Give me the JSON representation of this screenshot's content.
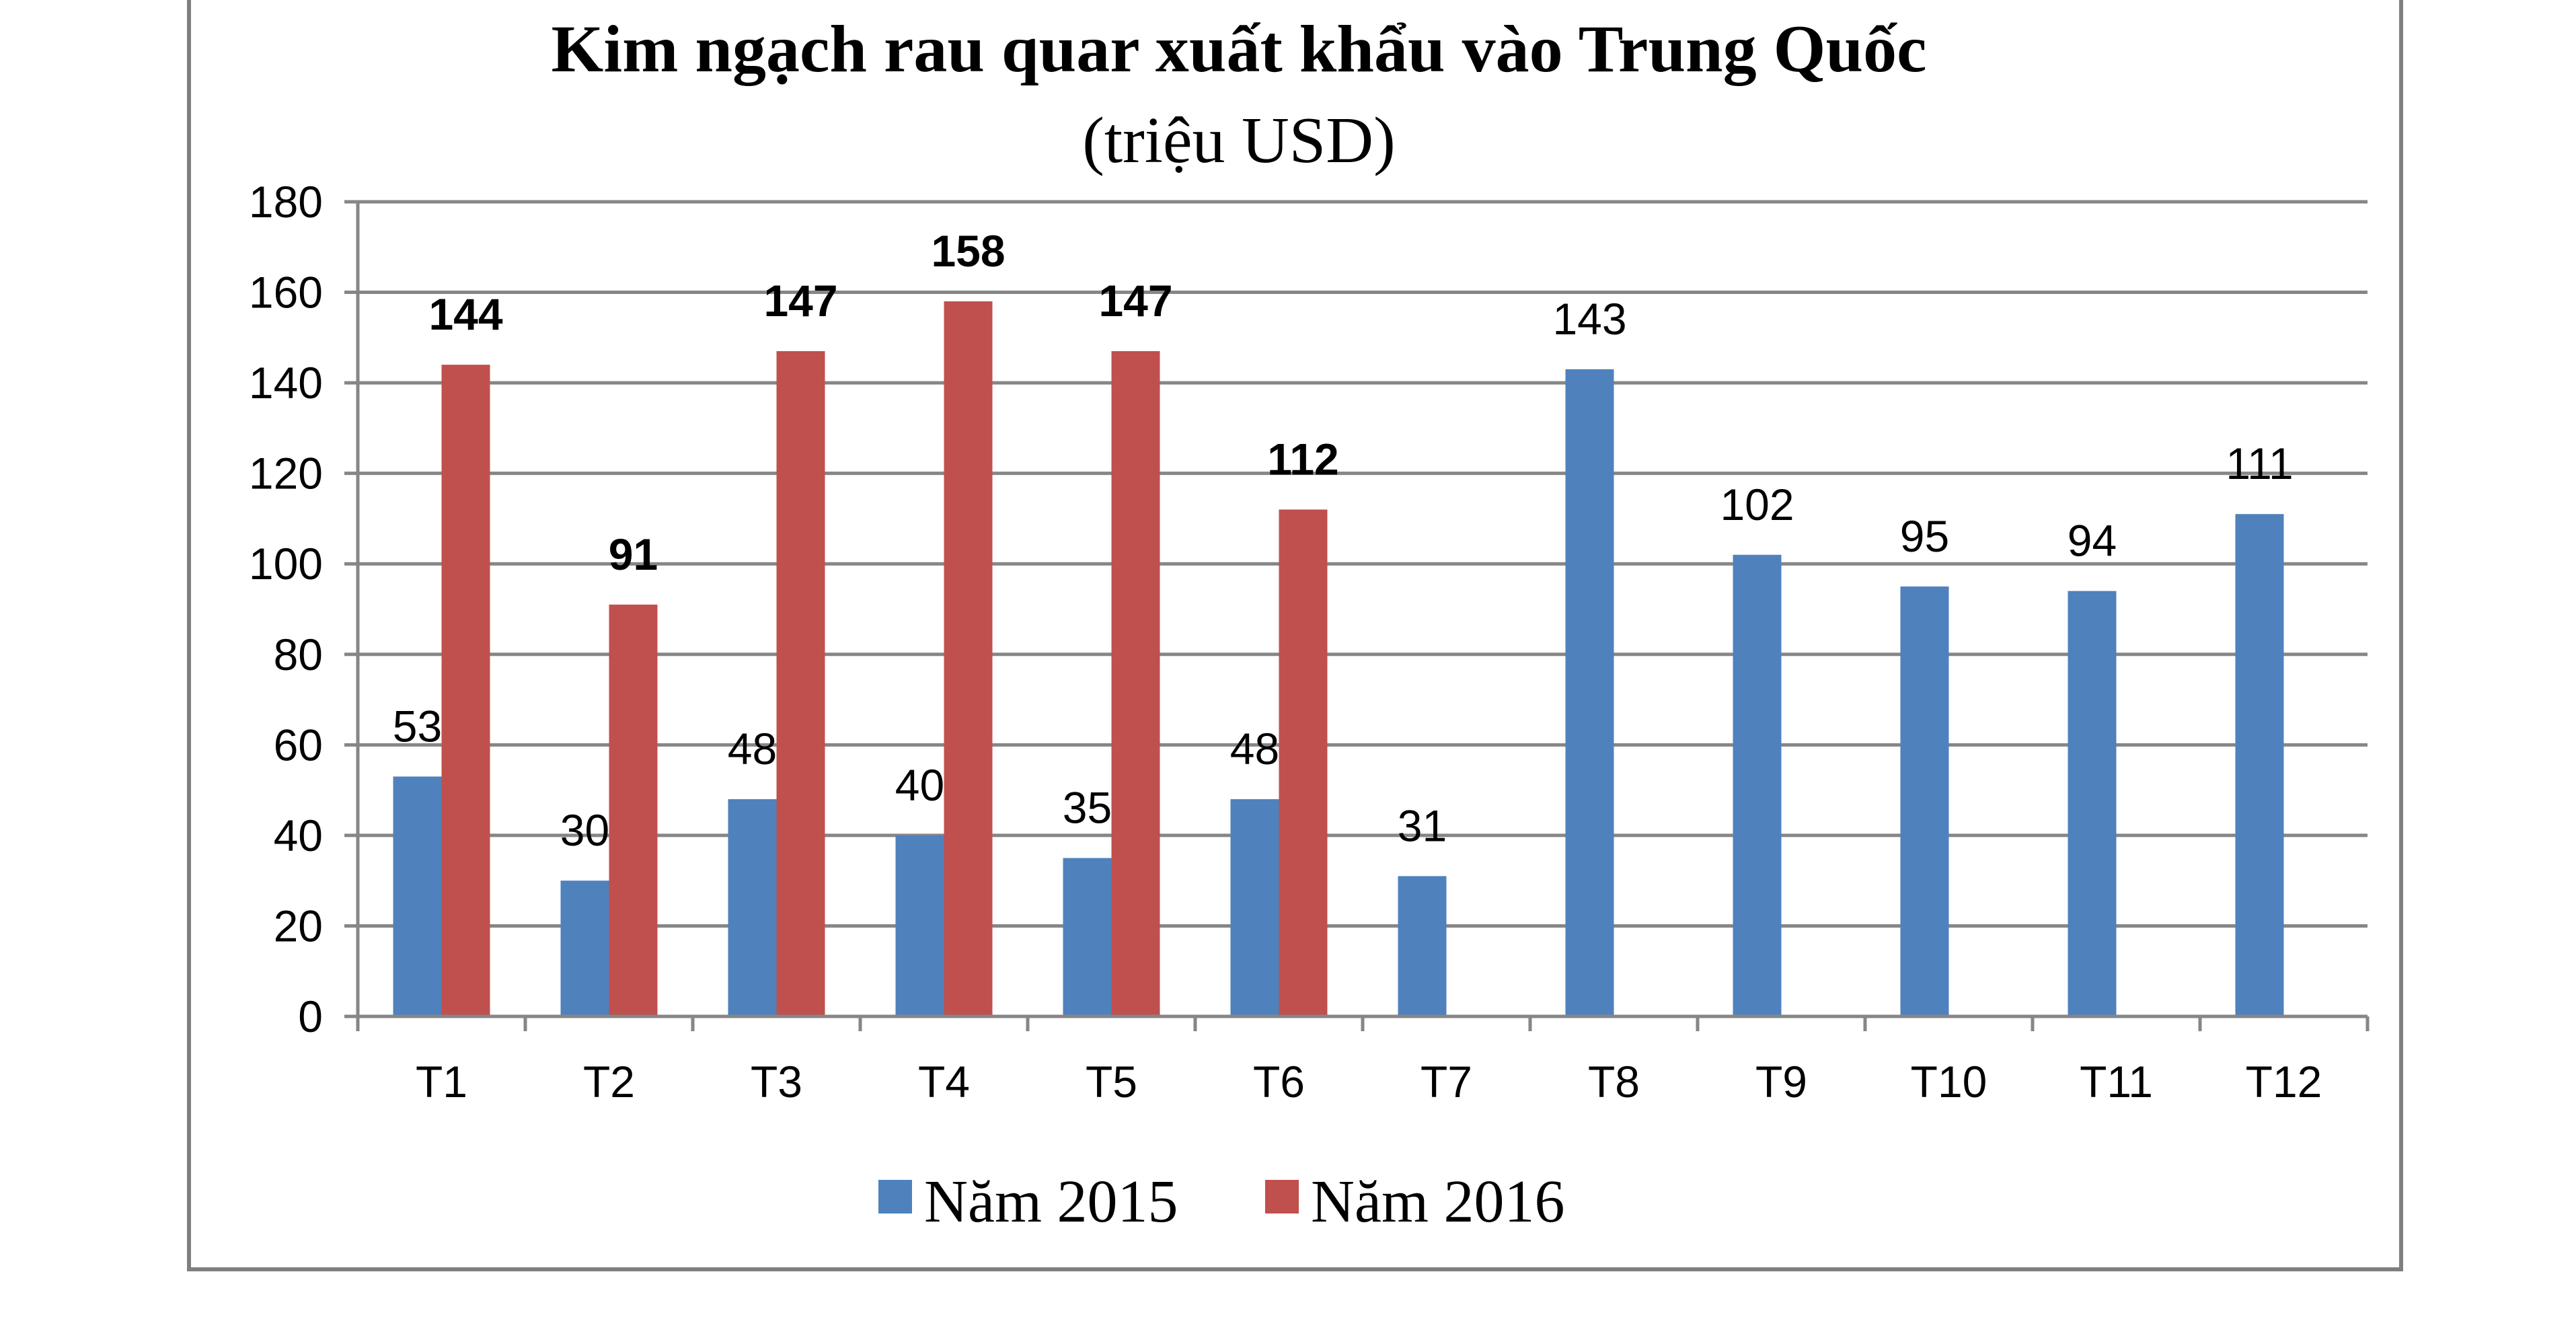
{
  "chart_data": {
    "type": "bar",
    "title": "Kim ngạch rau quar xuất khẩu vào Trung Quốc",
    "subtitle": "(triệu USD)",
    "categories": [
      "T1",
      "T2",
      "T3",
      "T4",
      "T5",
      "T6",
      "T7",
      "T8",
      "T9",
      "T10",
      "T11",
      "T12"
    ],
    "series": [
      {
        "name": "Năm 2015",
        "color": "#4f81bd",
        "values": [
          53,
          30,
          48,
          40,
          35,
          48,
          31,
          143,
          102,
          95,
          94,
          111
        ],
        "labels": [
          "53",
          "30",
          "48",
          "40",
          "35",
          "48",
          "31",
          "143",
          "102",
          "95",
          "94",
          "111"
        ]
      },
      {
        "name": "Năm 2016",
        "color": "#c0504d",
        "values": [
          144,
          91,
          147,
          158,
          147,
          112,
          null,
          null,
          null,
          null,
          null,
          null
        ],
        "labels": [
          "144",
          "91",
          "147",
          "158",
          "147",
          "112",
          "",
          "",
          "",
          "",
          "",
          ""
        ]
      }
    ],
    "ylim": [
      0,
      180
    ],
    "yticks": [
      0,
      20,
      40,
      60,
      80,
      100,
      120,
      140,
      160,
      180
    ],
    "ytick_labels": [
      "0",
      "20",
      "40",
      "60",
      "80",
      "100",
      "120",
      "140",
      "160",
      "180"
    ],
    "grid": true,
    "legend_position": "bottom",
    "xlabel": "",
    "ylabel": ""
  }
}
